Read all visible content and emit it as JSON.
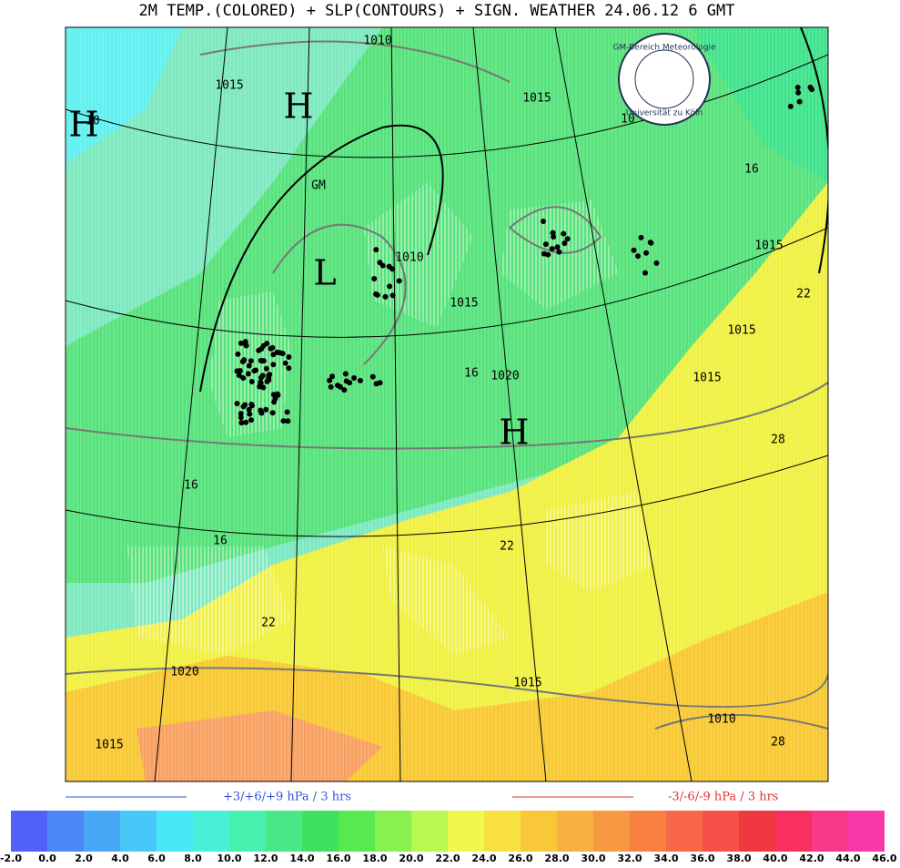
{
  "title": "2M TEMP.(COLORED) + SLP(CONTOURS) + SIGN. WEATHER 24.06.12 6  GMT",
  "logo": {
    "top": "GM-Bereich Meteorologie",
    "bottom": "Universität zu Köln"
  },
  "contour_labels": [
    "1010",
    "1015",
    "10",
    "1015",
    "10",
    "GM",
    "1010",
    "1015",
    "16",
    "1020",
    "1015",
    "16",
    "1015",
    "22",
    "1015",
    "28",
    "16",
    "16",
    "22",
    "22",
    "1020",
    "1015",
    "1015",
    "1010",
    "28"
  ],
  "pressure_centers": [
    "H",
    "H",
    "L",
    "H"
  ],
  "legend": {
    "rise": "+3/+6/+9 hPa / 3 hrs",
    "fall": "-3/-6/-9 hPa / 3 hrs"
  },
  "colorbar": {
    "labels": [
      "-2.0",
      "0.0",
      "2.0",
      "4.0",
      "6.0",
      "8.0",
      "10.0",
      "12.0",
      "14.0",
      "16.0",
      "18.0",
      "20.0",
      "22.0",
      "24.0",
      "26.0",
      "28.0",
      "30.0",
      "32.0",
      "34.0",
      "36.0",
      "38.0",
      "40.0",
      "42.0",
      "44.0",
      "46.0"
    ],
    "colors": [
      "#5060f8",
      "#4c88f8",
      "#48a8f8",
      "#48c8f8",
      "#48e8f8",
      "#48f0d8",
      "#48f0b0",
      "#48e888",
      "#40e060",
      "#58e850",
      "#88f050",
      "#b8f850",
      "#f0f850",
      "#f8e040",
      "#f8c838",
      "#f8b040",
      "#f89840",
      "#f88040",
      "#f86848",
      "#f85048",
      "#f03840",
      "#f83060",
      "#f83888",
      "#f838a8"
    ]
  }
}
